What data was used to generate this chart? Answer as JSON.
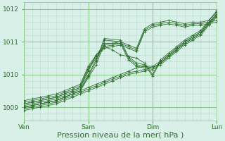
{
  "bg_color": "#d8f0e8",
  "line_color": "#2d6e2d",
  "grid_color": "#b8dece",
  "major_grid_color": "#88c888",
  "xlabel": "Pression niveau de la mer( hPa )",
  "xlabel_fontsize": 8,
  "yticks": [
    1009,
    1010,
    1011,
    1012
  ],
  "ylim": [
    1008.6,
    1012.15
  ],
  "xlim": [
    0,
    72
  ],
  "xtick_labels": [
    "Ven",
    "Sam",
    "Dim",
    "Lun"
  ],
  "xtick_positions": [
    0,
    24,
    48,
    72
  ],
  "series": [
    {
      "x": [
        0,
        3,
        6,
        9,
        12,
        15,
        18,
        21,
        24,
        27,
        30,
        33,
        36,
        39,
        42,
        45,
        48,
        51,
        54,
        57,
        60,
        63,
        66,
        69,
        72
      ],
      "y": [
        1008.9,
        1008.95,
        1009.0,
        1009.05,
        1009.1,
        1009.2,
        1009.3,
        1009.4,
        1009.5,
        1009.6,
        1009.7,
        1009.8,
        1009.9,
        1010.0,
        1010.05,
        1010.1,
        1010.15,
        1010.3,
        1010.5,
        1010.7,
        1010.9,
        1011.05,
        1011.2,
        1011.5,
        1011.75
      ]
    },
    {
      "x": [
        0,
        3,
        6,
        9,
        12,
        15,
        18,
        21,
        24,
        27,
        30,
        33,
        36,
        39,
        42,
        45,
        48,
        51,
        54,
        57,
        60,
        63,
        66,
        69,
        72
      ],
      "y": [
        1008.95,
        1009.0,
        1009.05,
        1009.1,
        1009.15,
        1009.25,
        1009.35,
        1009.45,
        1009.55,
        1009.65,
        1009.75,
        1009.85,
        1009.95,
        1010.05,
        1010.1,
        1010.15,
        1010.2,
        1010.35,
        1010.55,
        1010.75,
        1010.95,
        1011.1,
        1011.25,
        1011.55,
        1011.8
      ]
    },
    {
      "x": [
        0,
        3,
        6,
        9,
        12,
        15,
        18,
        21,
        24,
        27,
        30,
        33,
        36,
        39,
        42,
        45,
        48,
        51,
        54,
        57,
        60,
        63,
        66,
        69,
        72
      ],
      "y": [
        1009.0,
        1009.05,
        1009.1,
        1009.15,
        1009.2,
        1009.3,
        1009.4,
        1009.5,
        1009.6,
        1009.7,
        1009.8,
        1009.9,
        1010.0,
        1010.1,
        1010.2,
        1010.25,
        1010.25,
        1010.4,
        1010.6,
        1010.8,
        1011.0,
        1011.15,
        1011.3,
        1011.6,
        1011.85
      ]
    },
    {
      "x": [
        0,
        3,
        6,
        9,
        12,
        15,
        18,
        21,
        24,
        27,
        30,
        36,
        39,
        42,
        45,
        48,
        51,
        54,
        57,
        60,
        63,
        66,
        69,
        72
      ],
      "y": [
        1009.0,
        1009.05,
        1009.1,
        1009.15,
        1009.2,
        1009.3,
        1009.4,
        1009.5,
        1009.9,
        1010.3,
        1010.95,
        1010.95,
        1010.45,
        1010.25,
        1010.2,
        1010.2,
        1010.35,
        1010.55,
        1010.75,
        1010.95,
        1011.1,
        1011.25,
        1011.55,
        1011.8
      ]
    },
    {
      "x": [
        0,
        3,
        6,
        9,
        12,
        15,
        18,
        21,
        24,
        27,
        30,
        36,
        39,
        42,
        45,
        48,
        51,
        54,
        57,
        60,
        63,
        66,
        69,
        72
      ],
      "y": [
        1009.0,
        1009.05,
        1009.1,
        1009.15,
        1009.2,
        1009.3,
        1009.4,
        1009.5,
        1009.95,
        1010.4,
        1011.05,
        1011.0,
        1010.5,
        1010.3,
        1010.25,
        1010.2,
        1010.35,
        1010.55,
        1010.75,
        1010.95,
        1011.1,
        1011.25,
        1011.55,
        1011.8
      ]
    },
    {
      "x": [
        0,
        3,
        6,
        9,
        12,
        15,
        18,
        21,
        24,
        27,
        30,
        36,
        39,
        42,
        45,
        48,
        51,
        54,
        57,
        60,
        63,
        66,
        69,
        72
      ],
      "y": [
        1009.05,
        1009.1,
        1009.15,
        1009.2,
        1009.25,
        1009.35,
        1009.45,
        1009.55,
        1010.0,
        1010.45,
        1011.1,
        1011.05,
        1010.55,
        1010.35,
        1010.3,
        1009.95,
        1010.4,
        1010.6,
        1010.8,
        1011.0,
        1011.15,
        1011.3,
        1011.6,
        1011.85
      ]
    },
    {
      "x": [
        0,
        3,
        6,
        9,
        12,
        15,
        18,
        21,
        24,
        27,
        30,
        33,
        36,
        39,
        42,
        45,
        48,
        51,
        54,
        57,
        60,
        63,
        66,
        69,
        72
      ],
      "y": [
        1009.1,
        1009.15,
        1009.2,
        1009.25,
        1009.3,
        1009.4,
        1009.5,
        1009.6,
        1010.1,
        1010.6,
        1010.85,
        1010.75,
        1010.6,
        1010.55,
        1010.5,
        1010.35,
        1010.0,
        1010.45,
        1010.65,
        1010.85,
        1011.05,
        1011.2,
        1011.35,
        1011.65,
        1011.9
      ]
    },
    {
      "x": [
        0,
        3,
        6,
        9,
        12,
        15,
        18,
        21,
        24,
        27,
        30,
        33,
        36,
        39,
        42,
        45,
        48,
        51,
        54,
        57,
        60,
        63,
        66,
        69,
        72
      ],
      "y": [
        1009.1,
        1009.15,
        1009.2,
        1009.25,
        1009.3,
        1009.4,
        1009.5,
        1009.6,
        1010.15,
        1010.5,
        1010.8,
        1010.85,
        1010.9,
        1010.8,
        1010.7,
        1011.3,
        1011.45,
        1011.5,
        1011.55,
        1011.5,
        1011.45,
        1011.5,
        1011.5,
        1011.55,
        1011.6
      ]
    },
    {
      "x": [
        0,
        3,
        6,
        9,
        12,
        15,
        18,
        21,
        24,
        27,
        30,
        33,
        36,
        39,
        42,
        45,
        48,
        51,
        54,
        57,
        60,
        63,
        66,
        69,
        72
      ],
      "y": [
        1009.15,
        1009.2,
        1009.25,
        1009.3,
        1009.35,
        1009.45,
        1009.55,
        1009.65,
        1010.2,
        1010.55,
        1010.85,
        1010.9,
        1010.95,
        1010.85,
        1010.75,
        1011.35,
        1011.5,
        1011.55,
        1011.6,
        1011.55,
        1011.5,
        1011.55,
        1011.55,
        1011.6,
        1011.65
      ]
    },
    {
      "x": [
        0,
        3,
        6,
        9,
        12,
        15,
        18,
        21,
        24,
        27,
        30,
        33,
        36,
        39,
        42,
        45,
        48,
        51,
        54,
        57,
        60,
        63,
        66,
        69,
        72
      ],
      "y": [
        1009.2,
        1009.25,
        1009.3,
        1009.35,
        1009.4,
        1009.5,
        1009.6,
        1009.7,
        1010.25,
        1010.6,
        1010.9,
        1010.95,
        1011.0,
        1010.9,
        1010.8,
        1011.4,
        1011.55,
        1011.6,
        1011.65,
        1011.6,
        1011.55,
        1011.6,
        1011.6,
        1011.65,
        1011.95
      ]
    }
  ]
}
